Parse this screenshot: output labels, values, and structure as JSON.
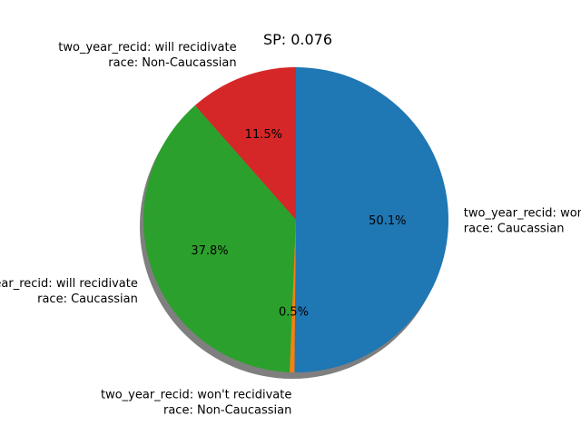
{
  "chart_data": {
    "type": "pie",
    "title": "SP: 0.076",
    "slices": [
      {
        "label_line1": "two_year_recid: will recidivate",
        "label_line2": "race: Non-Caucassian",
        "value": 11.5,
        "pct_label": "11.5%",
        "color": "#d62728"
      },
      {
        "label_line1": "two_year_recid: will recidivate",
        "label_line2": "race: Caucassian",
        "value": 37.8,
        "pct_label": "37.8%",
        "color": "#2ca02c"
      },
      {
        "label_line1": "two_year_recid: won't recidivate",
        "label_line2": "race: Non-Caucassian",
        "value": 0.5,
        "pct_label": "0.5%",
        "color": "#ff7f0e"
      },
      {
        "label_line1": "two_year_recid: won't recidivate",
        "label_line2": "race: Caucassian",
        "value": 50.1,
        "pct_label": "50.1%",
        "color": "#1f77b4"
      }
    ],
    "start_angle_deg": 90,
    "direction": "clockwise",
    "shadow": true,
    "legend": "none"
  }
}
